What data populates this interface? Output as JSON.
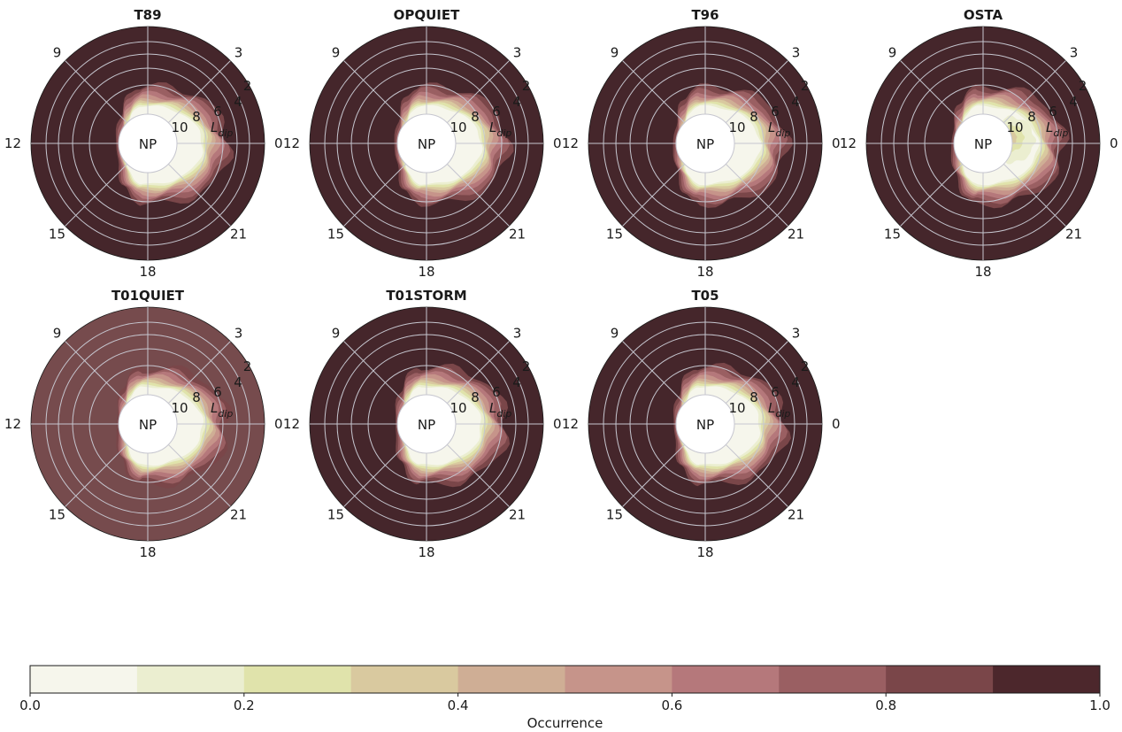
{
  "chart_data": {
    "type": "heatmap",
    "colorbar": {
      "label": "Occurrence",
      "ticks": [
        "0.0",
        "0.2",
        "0.4",
        "0.6",
        "0.8",
        "1.0"
      ],
      "range": [
        0.0,
        1.0
      ],
      "bins": 10,
      "colors": [
        "#f6f6ec",
        "#ebeed0",
        "#e0e3ab",
        "#d9c99f",
        "#cfae95",
        "#c6948a",
        "#b5787b",
        "#9a5f62",
        "#7a4649",
        "#4c272c"
      ]
    },
    "center_label": "NP",
    "mlt_labels": [
      "0",
      "2",
      "3",
      "9",
      "12",
      "15",
      "18",
      "21"
    ],
    "radial_labels": [
      "10",
      "8",
      "6",
      "4"
    ],
    "radial_axis_label": "L",
    "radial_axis_subscript": "dip",
    "panels": [
      {
        "title": "T89",
        "outer_value": 1.0,
        "outer_color": "#45262b"
      },
      {
        "title": "OPQUIET",
        "outer_value": 1.0,
        "outer_color": "#45262b"
      },
      {
        "title": "T96",
        "outer_value": 1.0,
        "outer_color": "#45262b"
      },
      {
        "title": "OSTA",
        "outer_value": 1.0,
        "outer_color": "#45262b"
      },
      {
        "title": "T01QUIET",
        "outer_value": 0.85,
        "outer_color": "#764b4d"
      },
      {
        "title": "T01STORM",
        "outer_value": 1.0,
        "outer_color": "#45262b"
      },
      {
        "title": "T05",
        "outer_value": 1.0,
        "outer_color": "#45262b"
      }
    ]
  }
}
